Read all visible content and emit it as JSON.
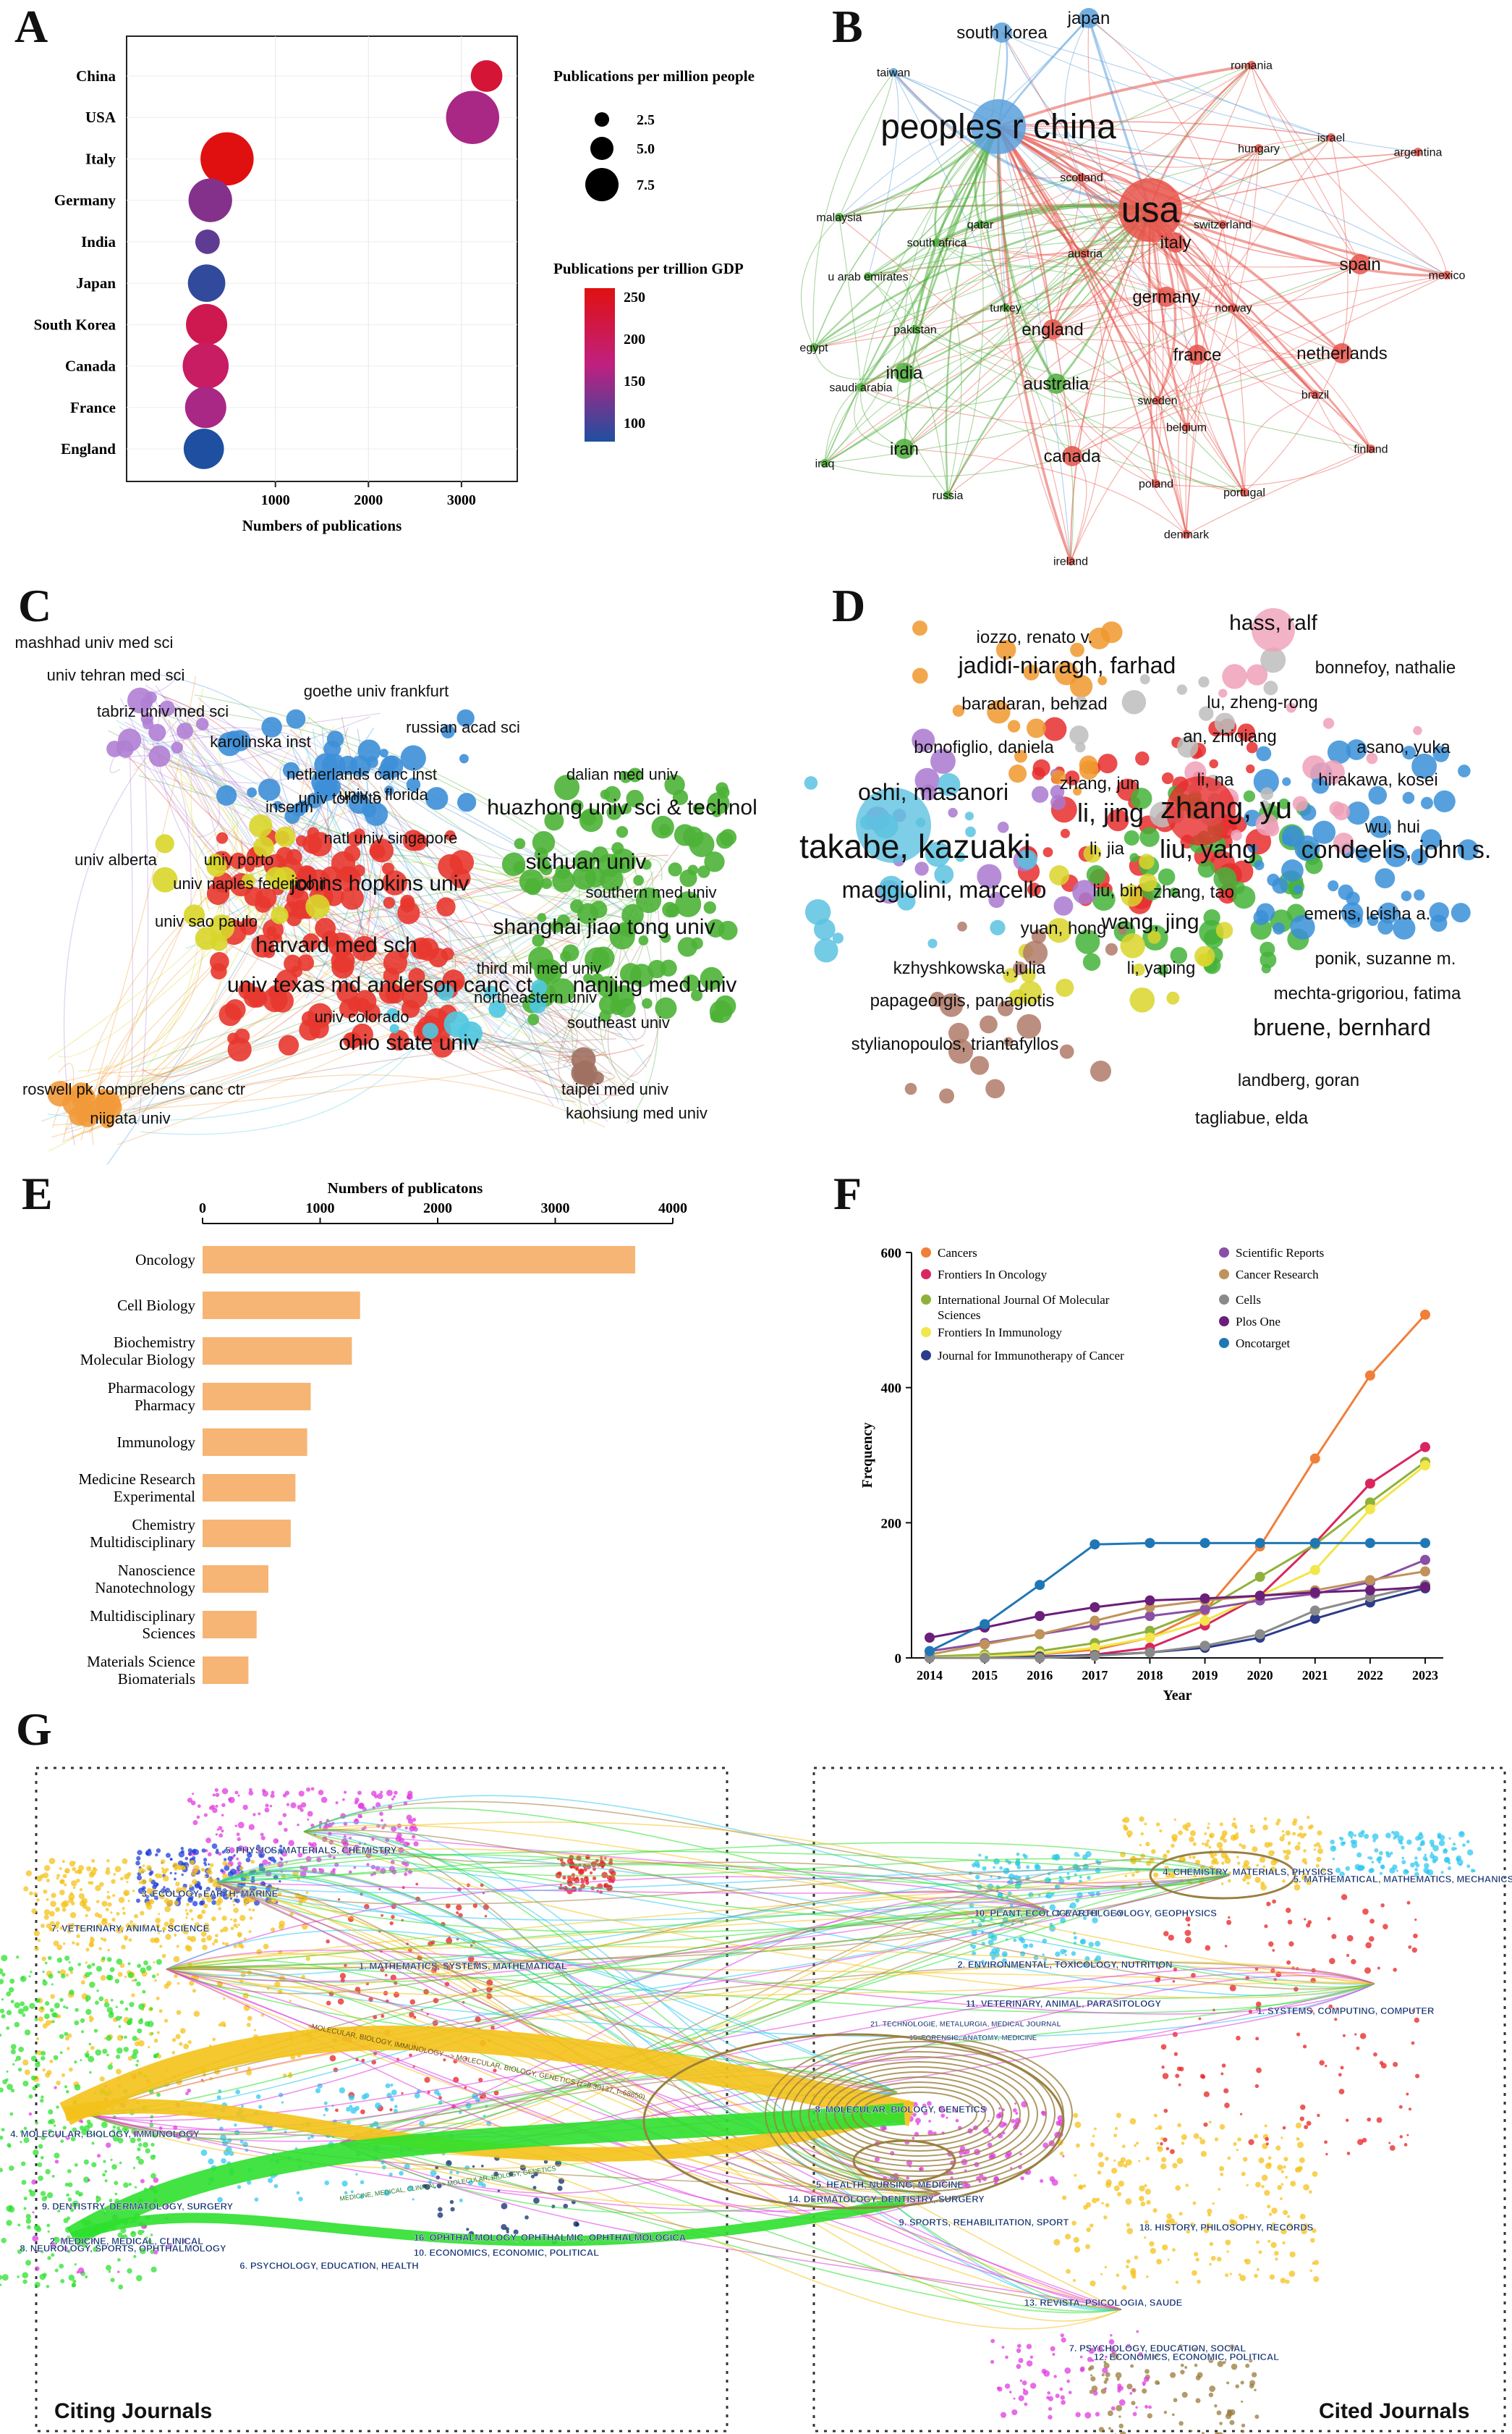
{
  "panel_labels": [
    "A",
    "B",
    "C",
    "D",
    "E",
    "F",
    "G"
  ],
  "chart_data": [
    {
      "id": "A",
      "type": "scatter",
      "title": "",
      "xlabel": "Numbers of publications",
      "xticks": [
        1000,
        2000,
        3000
      ],
      "xlim": [
        -600,
        3600
      ],
      "categories": [
        "China",
        "USA",
        "Italy",
        "Germany",
        "India",
        "Japan",
        "South Korea",
        "Canada",
        "France",
        "England"
      ],
      "x": [
        3270,
        3120,
        480,
        300,
        270,
        260,
        260,
        250,
        250,
        230
      ],
      "size_per_million": [
        3.0,
        7.5,
        7.5,
        5.5,
        1.5,
        4.2,
        5.0,
        6.0,
        5.0,
        4.8
      ],
      "gdp_per_trillion": [
        220,
        150,
        250,
        130,
        110,
        85,
        200,
        185,
        150,
        75
      ],
      "size_legend_title": "Publications per million people",
      "size_legend": [
        "2.5",
        "5.0",
        "7.5"
      ],
      "color_legend_title": "Publications per trillion GDP",
      "color_legend_ticks": [
        "250",
        "200",
        "150",
        "100"
      ],
      "colors": {
        "low": "#1f4fa0",
        "mid": "#c02080",
        "high": "#e01010"
      }
    },
    {
      "id": "B",
      "type": "network",
      "nodes": [
        {
          "label": "peoples r china",
          "cluster": "blue",
          "size": "xl"
        },
        {
          "label": "usa",
          "cluster": "red",
          "size": "xl"
        },
        {
          "label": "japan",
          "cluster": "blue",
          "size": "m"
        },
        {
          "label": "south korea",
          "cluster": "blue",
          "size": "m"
        },
        {
          "label": "taiwan",
          "cluster": "blue",
          "size": "s"
        },
        {
          "label": "romania",
          "cluster": "red",
          "size": "s"
        },
        {
          "label": "israel",
          "cluster": "red",
          "size": "s"
        },
        {
          "label": "hungary",
          "cluster": "red",
          "size": "s"
        },
        {
          "label": "argentina",
          "cluster": "red",
          "size": "s"
        },
        {
          "label": "scotland",
          "cluster": "red",
          "size": "s"
        },
        {
          "label": "italy",
          "cluster": "red",
          "size": "m"
        },
        {
          "label": "switzerland",
          "cluster": "red",
          "size": "s"
        },
        {
          "label": "spain",
          "cluster": "red",
          "size": "m"
        },
        {
          "label": "mexico",
          "cluster": "red",
          "size": "s"
        },
        {
          "label": "malaysia",
          "cluster": "green",
          "size": "s"
        },
        {
          "label": "qatar",
          "cluster": "green",
          "size": "s"
        },
        {
          "label": "south africa",
          "cluster": "green",
          "size": "s"
        },
        {
          "label": "austria",
          "cluster": "red",
          "size": "s"
        },
        {
          "label": "germany",
          "cluster": "red",
          "size": "m"
        },
        {
          "label": "u arab emirates",
          "cluster": "green",
          "size": "s"
        },
        {
          "label": "turkey",
          "cluster": "green",
          "size": "s"
        },
        {
          "label": "norway",
          "cluster": "red",
          "size": "s"
        },
        {
          "label": "pakistan",
          "cluster": "green",
          "size": "s"
        },
        {
          "label": "england",
          "cluster": "red",
          "size": "m"
        },
        {
          "label": "france",
          "cluster": "red",
          "size": "m"
        },
        {
          "label": "netherlands",
          "cluster": "red",
          "size": "m"
        },
        {
          "label": "egypt",
          "cluster": "green",
          "size": "s"
        },
        {
          "label": "india",
          "cluster": "green",
          "size": "m"
        },
        {
          "label": "australia",
          "cluster": "green",
          "size": "m"
        },
        {
          "label": "saudi arabia",
          "cluster": "green",
          "size": "s"
        },
        {
          "label": "sweden",
          "cluster": "red",
          "size": "s"
        },
        {
          "label": "brazil",
          "cluster": "red",
          "size": "s"
        },
        {
          "label": "belgium",
          "cluster": "red",
          "size": "s"
        },
        {
          "label": "iran",
          "cluster": "green",
          "size": "m"
        },
        {
          "label": "canada",
          "cluster": "red",
          "size": "m"
        },
        {
          "label": "finland",
          "cluster": "red",
          "size": "s"
        },
        {
          "label": "iraq",
          "cluster": "green",
          "size": "s"
        },
        {
          "label": "poland",
          "cluster": "red",
          "size": "s"
        },
        {
          "label": "russia",
          "cluster": "green",
          "size": "s"
        },
        {
          "label": "portugal",
          "cluster": "red",
          "size": "s"
        },
        {
          "label": "denmark",
          "cluster": "red",
          "size": "s"
        },
        {
          "label": "ireland",
          "cluster": "red",
          "size": "s"
        }
      ],
      "colors": {
        "blue": "#5aa0dc",
        "red": "#e8534a",
        "green": "#4fae3c"
      }
    },
    {
      "id": "C",
      "type": "network",
      "nodes": [
        {
          "label": "mashhad univ med sci",
          "cluster": "purple"
        },
        {
          "label": "univ tehran med sci",
          "cluster": "purple"
        },
        {
          "label": "tabriz univ med sci",
          "cluster": "purple"
        },
        {
          "label": "goethe univ frankfurt",
          "cluster": "blue"
        },
        {
          "label": "russian acad sci",
          "cluster": "blue"
        },
        {
          "label": "karolinska inst",
          "cluster": "blue"
        },
        {
          "label": "netherlands canc inst",
          "cluster": "blue"
        },
        {
          "label": "dalian med univ",
          "cluster": "green"
        },
        {
          "label": "inserm",
          "cluster": "blue"
        },
        {
          "label": "univ s florida",
          "cluster": "red"
        },
        {
          "label": "univ toronto",
          "cluster": "blue"
        },
        {
          "label": "huazhong univ sci & technol",
          "cluster": "green"
        },
        {
          "label": "natl univ singapore",
          "cluster": "red"
        },
        {
          "label": "univ alberta",
          "cluster": "purple"
        },
        {
          "label": "univ porto",
          "cluster": "yellow"
        },
        {
          "label": "sichuan univ",
          "cluster": "green"
        },
        {
          "label": "univ naples federico ii",
          "cluster": "red"
        },
        {
          "label": "johns hopkins univ",
          "cluster": "red"
        },
        {
          "label": "southern med univ",
          "cluster": "green"
        },
        {
          "label": "univ sao paulo",
          "cluster": "yellow"
        },
        {
          "label": "harvard med sch",
          "cluster": "red"
        },
        {
          "label": "shanghai jiao tong univ",
          "cluster": "green"
        },
        {
          "label": "third mil med univ",
          "cluster": "green"
        },
        {
          "label": "univ texas md anderson canc ct",
          "cluster": "red"
        },
        {
          "label": "nanjing med univ",
          "cluster": "green"
        },
        {
          "label": "northeastern univ",
          "cluster": "cyan"
        },
        {
          "label": "univ colorado",
          "cluster": "red"
        },
        {
          "label": "southeast univ",
          "cluster": "brown"
        },
        {
          "label": "ohio state univ",
          "cluster": "red"
        },
        {
          "label": "taipei med univ",
          "cluster": "brown"
        },
        {
          "label": "roswell pk comprehens canc ctr",
          "cluster": "orange"
        },
        {
          "label": "kaohsiung med univ",
          "cluster": "brown"
        },
        {
          "label": "niigata univ",
          "cluster": "orange"
        }
      ],
      "colors": {
        "red": "#e8372f",
        "green": "#4cb336",
        "blue": "#3d8fd8",
        "purple": "#b07fd4",
        "yellow": "#d8d62a",
        "orange": "#f29a3a",
        "cyan": "#4fc8e0",
        "brown": "#a07060"
      }
    },
    {
      "id": "D",
      "type": "network",
      "nodes": [
        {
          "label": "hass, ralf",
          "cluster": "pink"
        },
        {
          "label": "iozzo, renato v.",
          "cluster": "grey"
        },
        {
          "label": "jadidi-niaragh, farhad",
          "cluster": "orange"
        },
        {
          "label": "bonnefoy, nathalie",
          "cluster": "grey"
        },
        {
          "label": "baradaran, behzad",
          "cluster": "orange"
        },
        {
          "label": "lu, zheng-rong",
          "cluster": "blue"
        },
        {
          "label": "an, zhiqiang",
          "cluster": "red"
        },
        {
          "label": "asano, yuka",
          "cluster": "pink"
        },
        {
          "label": "bonofiglio, daniela",
          "cluster": "purple"
        },
        {
          "label": "li, na",
          "cluster": "red"
        },
        {
          "label": "hirakawa, kosei",
          "cluster": "blue"
        },
        {
          "label": "oshi, masanori",
          "cluster": "cyan"
        },
        {
          "label": "zhang, jun",
          "cluster": "blue"
        },
        {
          "label": "zhang, yu",
          "cluster": "green"
        },
        {
          "label": "li, jing",
          "cluster": "red"
        },
        {
          "label": "wu, hui",
          "cluster": "blue"
        },
        {
          "label": "takabe, kazuaki",
          "cluster": "cyan"
        },
        {
          "label": "li, jia",
          "cluster": "red"
        },
        {
          "label": "liu, yang",
          "cluster": "green"
        },
        {
          "label": "condeelis, john s.",
          "cluster": "blue"
        },
        {
          "label": "maggiolini, marcello",
          "cluster": "purple"
        },
        {
          "label": "liu, bin",
          "cluster": "yellow"
        },
        {
          "label": "zhang, tao",
          "cluster": "yellow"
        },
        {
          "label": "emens, leisha a.",
          "cluster": "blue"
        },
        {
          "label": "yuan, hong",
          "cluster": "yellow"
        },
        {
          "label": "wang, jing",
          "cluster": "green"
        },
        {
          "label": "ponik, suzanne m.",
          "cluster": "blue"
        },
        {
          "label": "kzhyshkowska, julia",
          "cluster": "purple"
        },
        {
          "label": "li, yaping",
          "cluster": "green"
        },
        {
          "label": "mechta-grigoriou, fatima",
          "cluster": "pink"
        },
        {
          "label": "bruene, bernhard",
          "cluster": "pink"
        },
        {
          "label": "papageorgis, panagiotis",
          "cluster": "brown"
        },
        {
          "label": "stylianopoulos, triantafyllos",
          "cluster": "brown"
        },
        {
          "label": "landberg, goran",
          "cluster": "green"
        },
        {
          "label": "tagliabue, elda",
          "cluster": "grey"
        }
      ],
      "colors": {
        "red": "#e82d2d",
        "green": "#44b33a",
        "blue": "#3a8fd8",
        "yellow": "#d9d52c",
        "purple": "#a978d0",
        "orange": "#f0982e",
        "cyan": "#5cc2e0",
        "pink": "#f0a0b8",
        "brown": "#b07a68",
        "grey": "#bdbdbd"
      }
    },
    {
      "id": "E",
      "type": "bar",
      "orientation": "horizontal",
      "title": "Numbers of publicatons",
      "xticks": [
        0,
        1000,
        2000,
        3000,
        4000
      ],
      "xlim": [
        0,
        4000
      ],
      "categories": [
        [
          "Oncology"
        ],
        [
          "Cell Biology"
        ],
        [
          "Biochemistry",
          "Molecular Biology"
        ],
        [
          "Pharmacology",
          "Pharmacy"
        ],
        [
          "Immunology"
        ],
        [
          "Medicine Research",
          "Experimental"
        ],
        [
          "Chemistry",
          "Multidisciplinary"
        ],
        [
          "Nanoscience",
          "Nanotechnology"
        ],
        [
          "Multidisciplinary",
          "Sciences"
        ],
        [
          "Materials Science",
          "Biomaterials"
        ]
      ],
      "values": [
        3680,
        1340,
        1270,
        920,
        890,
        790,
        750,
        560,
        460,
        390
      ],
      "color": "#f6b574"
    },
    {
      "id": "F",
      "type": "line",
      "xlabel": "Year",
      "ylabel": "Frequency",
      "x": [
        2014,
        2015,
        2016,
        2017,
        2018,
        2019,
        2020,
        2021,
        2022,
        2023
      ],
      "ylim": [
        0,
        600
      ],
      "yticks": [
        0,
        200,
        400,
        600
      ],
      "series": [
        {
          "name": "Cancers",
          "color": "#f07f3a",
          "values": [
            0,
            2,
            5,
            12,
            30,
            70,
            165,
            295,
            418,
            508
          ]
        },
        {
          "name": "Frontiers In Oncology",
          "color": "#d9265f",
          "values": [
            0,
            0,
            0,
            5,
            15,
            48,
            92,
            170,
            258,
            312
          ]
        },
        {
          "name": "International Journal Of Molecular Sciences",
          "color": "#8fb13c",
          "values": [
            2,
            5,
            10,
            22,
            40,
            72,
            120,
            168,
            230,
            290
          ]
        },
        {
          "name": "Frontiers In Immunology",
          "color": "#f2e64a",
          "values": [
            0,
            2,
            6,
            15,
            30,
            55,
            92,
            130,
            220,
            285
          ]
        },
        {
          "name": "Journal for Immunotherapy of Cancer",
          "color": "#2c3c8a",
          "values": [
            0,
            0,
            2,
            4,
            8,
            15,
            30,
            58,
            82,
            103
          ]
        },
        {
          "name": "Scientific Reports",
          "color": "#8a4fa6",
          "values": [
            10,
            22,
            35,
            48,
            62,
            72,
            85,
            95,
            112,
            145
          ]
        },
        {
          "name": "Cancer Research",
          "color": "#c0935a",
          "values": [
            5,
            20,
            35,
            55,
            75,
            85,
            92,
            100,
            115,
            128
          ]
        },
        {
          "name": "Cells",
          "color": "#8a8a8a",
          "values": [
            0,
            0,
            0,
            3,
            8,
            18,
            35,
            70,
            90,
            108
          ]
        },
        {
          "name": "Plos One",
          "color": "#6a1f7a",
          "values": [
            30,
            45,
            62,
            75,
            85,
            88,
            92,
            97,
            100,
            105
          ]
        },
        {
          "name": "Oncotarget",
          "color": "#1f77b4",
          "values": [
            10,
            50,
            108,
            168,
            170,
            170,
            170,
            170,
            170,
            170
          ]
        }
      ]
    },
    {
      "id": "G",
      "type": "overlay-map",
      "left_title": "Citing Journals",
      "right_title": "Cited Journals",
      "citing_clusters": [
        "5. PHYSICS, MATERIALS, CHEMISTRY",
        "3. ECOLOGY, EARTH, MARINE",
        "7. VETERINARY, ANIMAL, SCIENCE",
        "1. MATHEMATICS, SYSTEMS, MATHEMATICAL",
        "4. MOLECULAR, BIOLOGY, IMMUNOLOGY",
        "9. DENTISTRY, DERMATOLOGY, SURGERY",
        "2. MEDICINE, MEDICAL, CLINICAL",
        "8. NEUROLOGY, SPORTS, OPHTHALMOLOGY",
        "10. ECONOMICS, ECONOMIC, POLITICAL",
        "6. PSYCHOLOGY, EDUCATION, HEALTH",
        "16. OPHTHALMOLOGY, OPHTHALMIC, OPHTHALMOLOGICA"
      ],
      "cited_clusters": [
        "4. CHEMISTRY, MATERIALS, PHYSICS",
        "5. MATHEMATICAL, MATHEMATICS, MECHANICS",
        "10. PLANT, ECOLOGY, ZOOLOGY",
        "3. EARTH, GEOLOGY, GEOPHYSICS",
        "2. ENVIRONMENTAL, TOXICOLOGY, NUTRITION",
        "11. VETERINARY, ANIMAL, PARASITOLOGY",
        "1. SYSTEMS, COMPUTING, COMPUTER",
        "21. TECHNOLOGIE, METALURGIA, MEDICAL JOURNAL",
        "15. FORENSIC, ANATOMY, MEDICINE",
        "8. MOLECULAR, BIOLOGY, GENETICS",
        "5. HEALTH, NURSING, MEDICINE",
        "14. DERMATOLOGY, DENTISTRY, SURGERY",
        "9. SPORTS, REHABILITATION, SPORT",
        "18. HISTORY, PHILOSOPHY, RECORDS",
        "13. REVISTA, PSICOLOGIA, SAUDE",
        "7. PSYCHOLOGY, EDUCATION, SOCIAL",
        "12. ECONOMICS, ECONOMIC, POLITICAL"
      ],
      "flow_labels": [
        "MOLECULAR, BIOLOGY, IMMUNOLOGY --> MOLECULAR, BIOLOGY, GENETICS (z=8.30137, f=68850)",
        "MEDICINE, MEDICAL, CLINICAL --> MOLECULAR, BIOLOGY, GENETICS"
      ],
      "colors": {
        "yellow": "#f4c21a",
        "green": "#2ee02e",
        "magenta": "#e03ae0",
        "cyan": "#30c8f0",
        "blue": "#1f3fd8",
        "red": "#e82020",
        "brown": "#9a7a3a",
        "navy": "#0b2a6a"
      }
    }
  ]
}
